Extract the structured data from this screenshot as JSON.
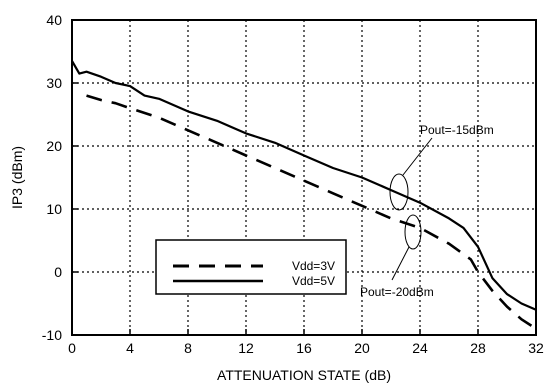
{
  "chart_data": {
    "type": "line",
    "xlabel": "ATTENUATION STATE (dB)",
    "ylabel": "IP3 (dBm)",
    "xlim": [
      0,
      32
    ],
    "ylim": [
      -10,
      40
    ],
    "xticks": [
      "0",
      "4",
      "8",
      "12",
      "16",
      "20",
      "24",
      "28",
      "32"
    ],
    "yticks": [
      "-10",
      "0",
      "10",
      "20",
      "30",
      "40"
    ],
    "grid": true,
    "legend_position": "lower-left",
    "series": [
      {
        "name": "Vdd=3V",
        "style": "dashed",
        "x": [
          1,
          2,
          3,
          4,
          6,
          8,
          10,
          12,
          14,
          16,
          18,
          20,
          22,
          24,
          26,
          27.5,
          28,
          29,
          30,
          31,
          32
        ],
        "y": [
          28,
          27.3,
          26.8,
          26,
          24.5,
          22.5,
          20.5,
          18.5,
          16.5,
          14.5,
          12.5,
          10.5,
          8.5,
          7,
          4.5,
          2,
          0,
          -3,
          -5.5,
          -7.5,
          -9
        ]
      },
      {
        "name": "Vdd=5V",
        "style": "solid",
        "x": [
          0,
          0.5,
          1,
          2,
          3,
          4,
          5,
          6,
          8,
          10,
          12,
          14,
          16,
          18,
          20,
          22,
          24,
          26,
          27,
          28,
          29,
          30,
          31,
          32
        ],
        "y": [
          33.5,
          31.5,
          31.8,
          31,
          30,
          29.5,
          28,
          27.5,
          25.5,
          24,
          22,
          20.5,
          18.5,
          16.5,
          15,
          13,
          11,
          8.5,
          7,
          4,
          -1,
          -3.5,
          -5,
          -6
        ]
      }
    ],
    "annotations": [
      {
        "text": "Pout=-15dBm"
      },
      {
        "text": "Pout=-20dBm"
      }
    ]
  }
}
